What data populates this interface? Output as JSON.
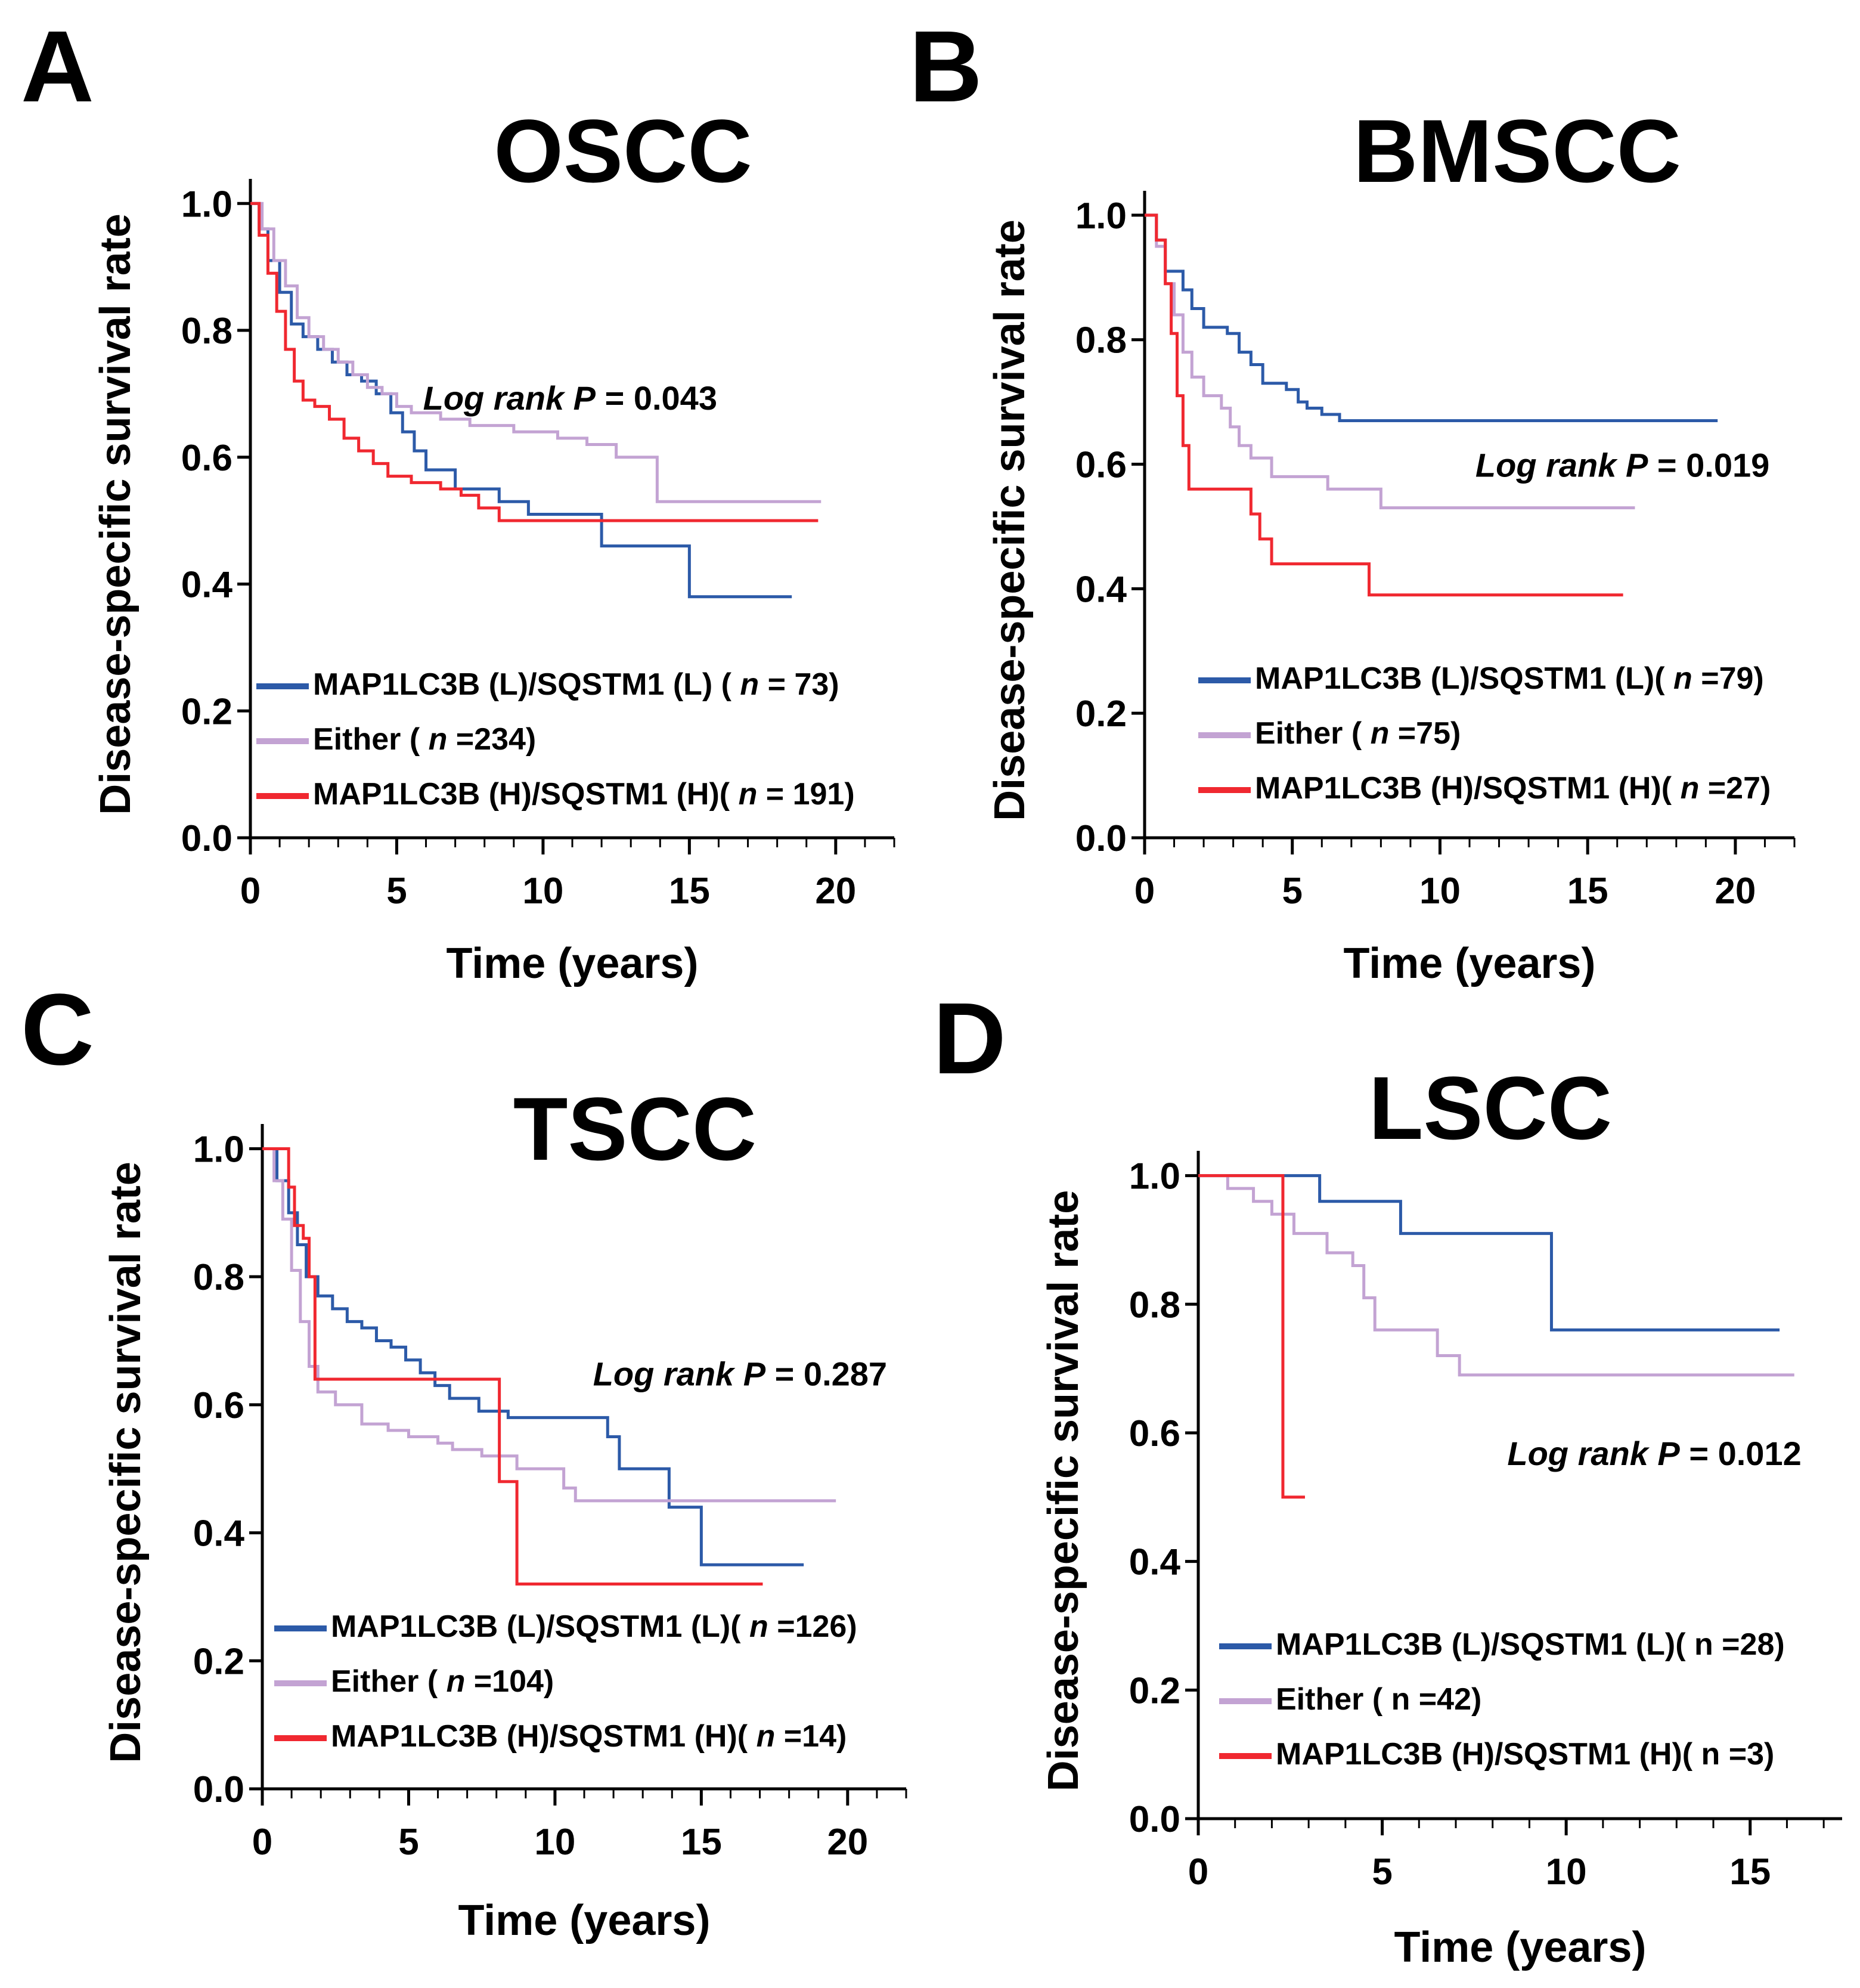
{
  "colors": {
    "blue": "#2c5aa8",
    "purple": "#c3a3d3",
    "red": "#f02830"
  },
  "chart_data": [
    {
      "panel": "A",
      "type": "line",
      "subtype": "kaplan-meier",
      "title": "OSCC",
      "xlabel": "Time (years)",
      "ylabel": "Disease-specific survival rate",
      "xlim": [
        0,
        22
      ],
      "ylim": [
        0,
        1.02
      ],
      "xticks": [
        "0",
        "5",
        "10",
        "15",
        "20"
      ],
      "yticks": [
        "0.0",
        "0.2",
        "0.4",
        "0.6",
        "0.8",
        "1.0"
      ],
      "annotation": {
        "prefix": "Log rank ",
        "p": "P",
        "suffix": " = 0.043",
        "pos": [
          5.9,
          0.675
        ]
      },
      "legend": [
        {
          "label": "MAP1LC3B (L)/SQSTM1 (L) ( ",
          "n": "n",
          "count": " = 73)",
          "color": "blue"
        },
        {
          "label": "Either ( ",
          "n": "n",
          "count": " =234)",
          "color": "purple"
        },
        {
          "label": "MAP1LC3B (H)/SQSTM1 (H)( ",
          "n": "n",
          "count": " = 191)",
          "color": "red"
        }
      ],
      "series": [
        {
          "name": "MAP1LC3B (L)/SQSTM1 (L)",
          "color": "blue",
          "points": [
            [
              0,
              1
            ],
            [
              0.3,
              0.96
            ],
            [
              0.6,
              0.91
            ],
            [
              1.0,
              0.86
            ],
            [
              1.4,
              0.81
            ],
            [
              1.8,
              0.79
            ],
            [
              2.3,
              0.77
            ],
            [
              2.8,
              0.75
            ],
            [
              3.3,
              0.73
            ],
            [
              3.8,
              0.72
            ],
            [
              4.3,
              0.7
            ],
            [
              4.8,
              0.67
            ],
            [
              5.2,
              0.64
            ],
            [
              5.6,
              0.61
            ],
            [
              6.0,
              0.58
            ],
            [
              7.0,
              0.55
            ],
            [
              8.5,
              0.53
            ],
            [
              9.5,
              0.51
            ],
            [
              12.0,
              0.46
            ],
            [
              15.0,
              0.38
            ],
            [
              18.5,
              0.38
            ]
          ]
        },
        {
          "name": "Either",
          "color": "purple",
          "points": [
            [
              0,
              1
            ],
            [
              0.4,
              0.96
            ],
            [
              0.8,
              0.91
            ],
            [
              1.2,
              0.87
            ],
            [
              1.6,
              0.82
            ],
            [
              2.0,
              0.79
            ],
            [
              2.5,
              0.77
            ],
            [
              3.0,
              0.75
            ],
            [
              3.5,
              0.73
            ],
            [
              4.0,
              0.71
            ],
            [
              4.5,
              0.7
            ],
            [
              5.0,
              0.68
            ],
            [
              5.5,
              0.67
            ],
            [
              6.5,
              0.66
            ],
            [
              7.5,
              0.65
            ],
            [
              9.0,
              0.64
            ],
            [
              10.5,
              0.63
            ],
            [
              11.5,
              0.62
            ],
            [
              12.5,
              0.6
            ],
            [
              13.9,
              0.53
            ],
            [
              19.5,
              0.53
            ]
          ]
        },
        {
          "name": "MAP1LC3B (H)/SQSTM1 (H)",
          "color": "red",
          "points": [
            [
              0,
              1
            ],
            [
              0.3,
              0.95
            ],
            [
              0.6,
              0.89
            ],
            [
              0.9,
              0.83
            ],
            [
              1.2,
              0.77
            ],
            [
              1.5,
              0.72
            ],
            [
              1.8,
              0.69
            ],
            [
              2.2,
              0.68
            ],
            [
              2.7,
              0.66
            ],
            [
              3.2,
              0.63
            ],
            [
              3.7,
              0.61
            ],
            [
              4.2,
              0.59
            ],
            [
              4.7,
              0.57
            ],
            [
              5.5,
              0.56
            ],
            [
              6.5,
              0.55
            ],
            [
              7.2,
              0.54
            ],
            [
              7.8,
              0.52
            ],
            [
              8.5,
              0.5
            ],
            [
              10.0,
              0.5
            ],
            [
              19.4,
              0.5
            ]
          ]
        }
      ]
    },
    {
      "panel": "B",
      "type": "line",
      "subtype": "kaplan-meier",
      "title": "BMSCC",
      "xlabel": "Time (years)",
      "ylabel": "Disease-specific survival rate",
      "xlim": [
        0,
        22
      ],
      "ylim": [
        0,
        1.02
      ],
      "xticks": [
        "0",
        "5",
        "10",
        "15",
        "20"
      ],
      "yticks": [
        "0.0",
        "0.2",
        "0.4",
        "0.6",
        "0.8",
        "1.0"
      ],
      "annotation": {
        "prefix": "Log rank ",
        "p": "P",
        "suffix": " = 0.019",
        "pos": [
          11.2,
          0.58
        ]
      },
      "legend": [
        {
          "label": "MAP1LC3B (L)/SQSTM1 (L)( ",
          "n": "n",
          "count": " =79)",
          "color": "blue"
        },
        {
          "label": "Either ( ",
          "n": "n",
          "count": " =75)",
          "color": "purple"
        },
        {
          "label": "MAP1LC3B (H)/SQSTM1 (H)( ",
          "n": "n",
          "count": " =27)",
          "color": "red"
        }
      ],
      "series": [
        {
          "name": "MAP1LC3B (L)/SQSTM1 (L)",
          "color": "blue",
          "points": [
            [
              0,
              1
            ],
            [
              0.4,
              0.96
            ],
            [
              0.7,
              0.91
            ],
            [
              1.3,
              0.88
            ],
            [
              1.6,
              0.85
            ],
            [
              2.0,
              0.82
            ],
            [
              2.8,
              0.81
            ],
            [
              3.2,
              0.78
            ],
            [
              3.6,
              0.76
            ],
            [
              4.0,
              0.73
            ],
            [
              4.8,
              0.72
            ],
            [
              5.2,
              0.7
            ],
            [
              5.5,
              0.69
            ],
            [
              6.0,
              0.68
            ],
            [
              6.6,
              0.67
            ],
            [
              19.4,
              0.67
            ]
          ]
        },
        {
          "name": "Either",
          "color": "purple",
          "points": [
            [
              0,
              1
            ],
            [
              0.4,
              0.95
            ],
            [
              0.7,
              0.89
            ],
            [
              1.0,
              0.84
            ],
            [
              1.3,
              0.78
            ],
            [
              1.6,
              0.74
            ],
            [
              2.0,
              0.71
            ],
            [
              2.6,
              0.69
            ],
            [
              2.9,
              0.66
            ],
            [
              3.2,
              0.63
            ],
            [
              3.6,
              0.61
            ],
            [
              4.3,
              0.58
            ],
            [
              6.2,
              0.56
            ],
            [
              8.0,
              0.53
            ],
            [
              16.6,
              0.53
            ]
          ]
        },
        {
          "name": "MAP1LC3B (H)/SQSTM1 (H)",
          "color": "red",
          "points": [
            [
              0,
              1
            ],
            [
              0.4,
              0.96
            ],
            [
              0.7,
              0.89
            ],
            [
              0.9,
              0.81
            ],
            [
              1.1,
              0.71
            ],
            [
              1.3,
              0.63
            ],
            [
              1.5,
              0.56
            ],
            [
              3.6,
              0.52
            ],
            [
              3.9,
              0.48
            ],
            [
              4.3,
              0.44
            ],
            [
              6.5,
              0.44
            ],
            [
              7.6,
              0.39
            ],
            [
              16.2,
              0.39
            ]
          ]
        }
      ]
    },
    {
      "panel": "C",
      "type": "line",
      "subtype": "kaplan-meier",
      "title": "TSCC",
      "xlabel": "Time (years)",
      "ylabel": "Disease-specific survival rate",
      "xlim": [
        0,
        22
      ],
      "ylim": [
        0,
        1.02
      ],
      "xticks": [
        "0",
        "5",
        "10",
        "15",
        "20"
      ],
      "yticks": [
        "0.0",
        "0.2",
        "0.4",
        "0.6",
        "0.8",
        "1.0"
      ],
      "annotation": {
        "prefix": "Log rank ",
        "p": "P",
        "suffix": " = 0.287",
        "pos": [
          11.3,
          0.63
        ]
      },
      "legend": [
        {
          "label": "MAP1LC3B (L)/SQSTM1 (L)( ",
          "n": "n",
          "count": " =126)",
          "color": "blue"
        },
        {
          "label": "Either ( ",
          "n": "n",
          "count": " =104)",
          "color": "purple"
        },
        {
          "label": "MAP1LC3B (H)/SQSTM1 (H)( ",
          "n": "n",
          "count": " =14)",
          "color": "red"
        }
      ],
      "series": [
        {
          "name": "MAP1LC3B (L)/SQSTM1 (L)",
          "color": "blue",
          "points": [
            [
              0,
              1
            ],
            [
              0.5,
              0.95
            ],
            [
              0.9,
              0.9
            ],
            [
              1.2,
              0.85
            ],
            [
              1.5,
              0.8
            ],
            [
              1.9,
              0.77
            ],
            [
              2.4,
              0.75
            ],
            [
              2.9,
              0.73
            ],
            [
              3.4,
              0.72
            ],
            [
              3.9,
              0.7
            ],
            [
              4.4,
              0.69
            ],
            [
              4.9,
              0.67
            ],
            [
              5.4,
              0.65
            ],
            [
              5.9,
              0.63
            ],
            [
              6.4,
              0.61
            ],
            [
              7.4,
              0.59
            ],
            [
              8.4,
              0.58
            ],
            [
              11.8,
              0.55
            ],
            [
              12.2,
              0.5
            ],
            [
              13.9,
              0.44
            ],
            [
              15.0,
              0.35
            ],
            [
              18.5,
              0.35
            ]
          ]
        },
        {
          "name": "Either",
          "color": "purple",
          "points": [
            [
              0,
              1
            ],
            [
              0.4,
              0.95
            ],
            [
              0.7,
              0.89
            ],
            [
              1.0,
              0.81
            ],
            [
              1.3,
              0.73
            ],
            [
              1.6,
              0.66
            ],
            [
              1.9,
              0.62
            ],
            [
              2.5,
              0.6
            ],
            [
              3.4,
              0.57
            ],
            [
              4.3,
              0.56
            ],
            [
              5.0,
              0.55
            ],
            [
              6.0,
              0.54
            ],
            [
              6.5,
              0.53
            ],
            [
              7.5,
              0.52
            ],
            [
              8.2,
              0.52
            ],
            [
              8.7,
              0.5
            ],
            [
              10.3,
              0.47
            ],
            [
              10.7,
              0.45
            ],
            [
              19.6,
              0.45
            ]
          ]
        },
        {
          "name": "MAP1LC3B (H)/SQSTM1 (H)",
          "color": "red",
          "points": [
            [
              0,
              1
            ],
            [
              0.8,
              1
            ],
            [
              0.9,
              0.94
            ],
            [
              1.1,
              0.88
            ],
            [
              1.4,
              0.86
            ],
            [
              1.6,
              0.8
            ],
            [
              1.8,
              0.64
            ],
            [
              7.8,
              0.64
            ],
            [
              8.1,
              0.48
            ],
            [
              8.6,
              0.48
            ],
            [
              8.7,
              0.32
            ],
            [
              17.1,
              0.32
            ]
          ]
        }
      ]
    },
    {
      "panel": "D",
      "type": "line",
      "subtype": "kaplan-meier",
      "title": "LSCC",
      "xlabel": "Time (years)",
      "ylabel": "Disease-specific survival rate",
      "xlim": [
        0,
        17.5
      ],
      "ylim": [
        0,
        1.02
      ],
      "xticks": [
        "0",
        "5",
        "10",
        "15"
      ],
      "yticks": [
        "0.0",
        "0.2",
        "0.4",
        "0.6",
        "0.8",
        "1.0"
      ],
      "annotation": {
        "prefix": "Log rank ",
        "p": "P",
        "suffix": " = 0.012",
        "pos": [
          8.4,
          0.55
        ]
      },
      "legend": [
        {
          "label": "MAP1LC3B (L)/SQSTM1 (L)( n =28)",
          "n": "",
          "count": "",
          "color": "blue"
        },
        {
          "label": "Either ( n =42)",
          "n": "",
          "count": "",
          "color": "purple"
        },
        {
          "label": "MAP1LC3B (H)/SQSTM1 (H)( n =3)",
          "n": "",
          "count": "",
          "color": "red"
        }
      ],
      "series": [
        {
          "name": "MAP1LC3B (L)/SQSTM1 (L)",
          "color": "blue",
          "points": [
            [
              0,
              1
            ],
            [
              3.3,
              1
            ],
            [
              3.3,
              0.96
            ],
            [
              5.5,
              0.96
            ],
            [
              5.5,
              0.91
            ],
            [
              9.6,
              0.91
            ],
            [
              9.6,
              0.76
            ],
            [
              15.8,
              0.76
            ]
          ]
        },
        {
          "name": "Either",
          "color": "purple",
          "points": [
            [
              0,
              1
            ],
            [
              0.8,
              1
            ],
            [
              0.8,
              0.98
            ],
            [
              1.5,
              0.98
            ],
            [
              1.5,
              0.96
            ],
            [
              2.0,
              0.96
            ],
            [
              2.0,
              0.94
            ],
            [
              2.6,
              0.94
            ],
            [
              2.6,
              0.91
            ],
            [
              3.5,
              0.91
            ],
            [
              3.5,
              0.88
            ],
            [
              4.2,
              0.88
            ],
            [
              4.2,
              0.86
            ],
            [
              4.5,
              0.86
            ],
            [
              4.5,
              0.81
            ],
            [
              4.8,
              0.81
            ],
            [
              4.8,
              0.76
            ],
            [
              6.5,
              0.76
            ],
            [
              6.5,
              0.72
            ],
            [
              7.1,
              0.72
            ],
            [
              7.1,
              0.69
            ],
            [
              16.2,
              0.69
            ]
          ]
        },
        {
          "name": "MAP1LC3B (H)/SQSTM1 (H)",
          "color": "red",
          "points": [
            [
              0,
              1
            ],
            [
              2.3,
              1
            ],
            [
              2.3,
              0.5
            ],
            [
              2.9,
              0.5
            ]
          ]
        }
      ]
    }
  ]
}
